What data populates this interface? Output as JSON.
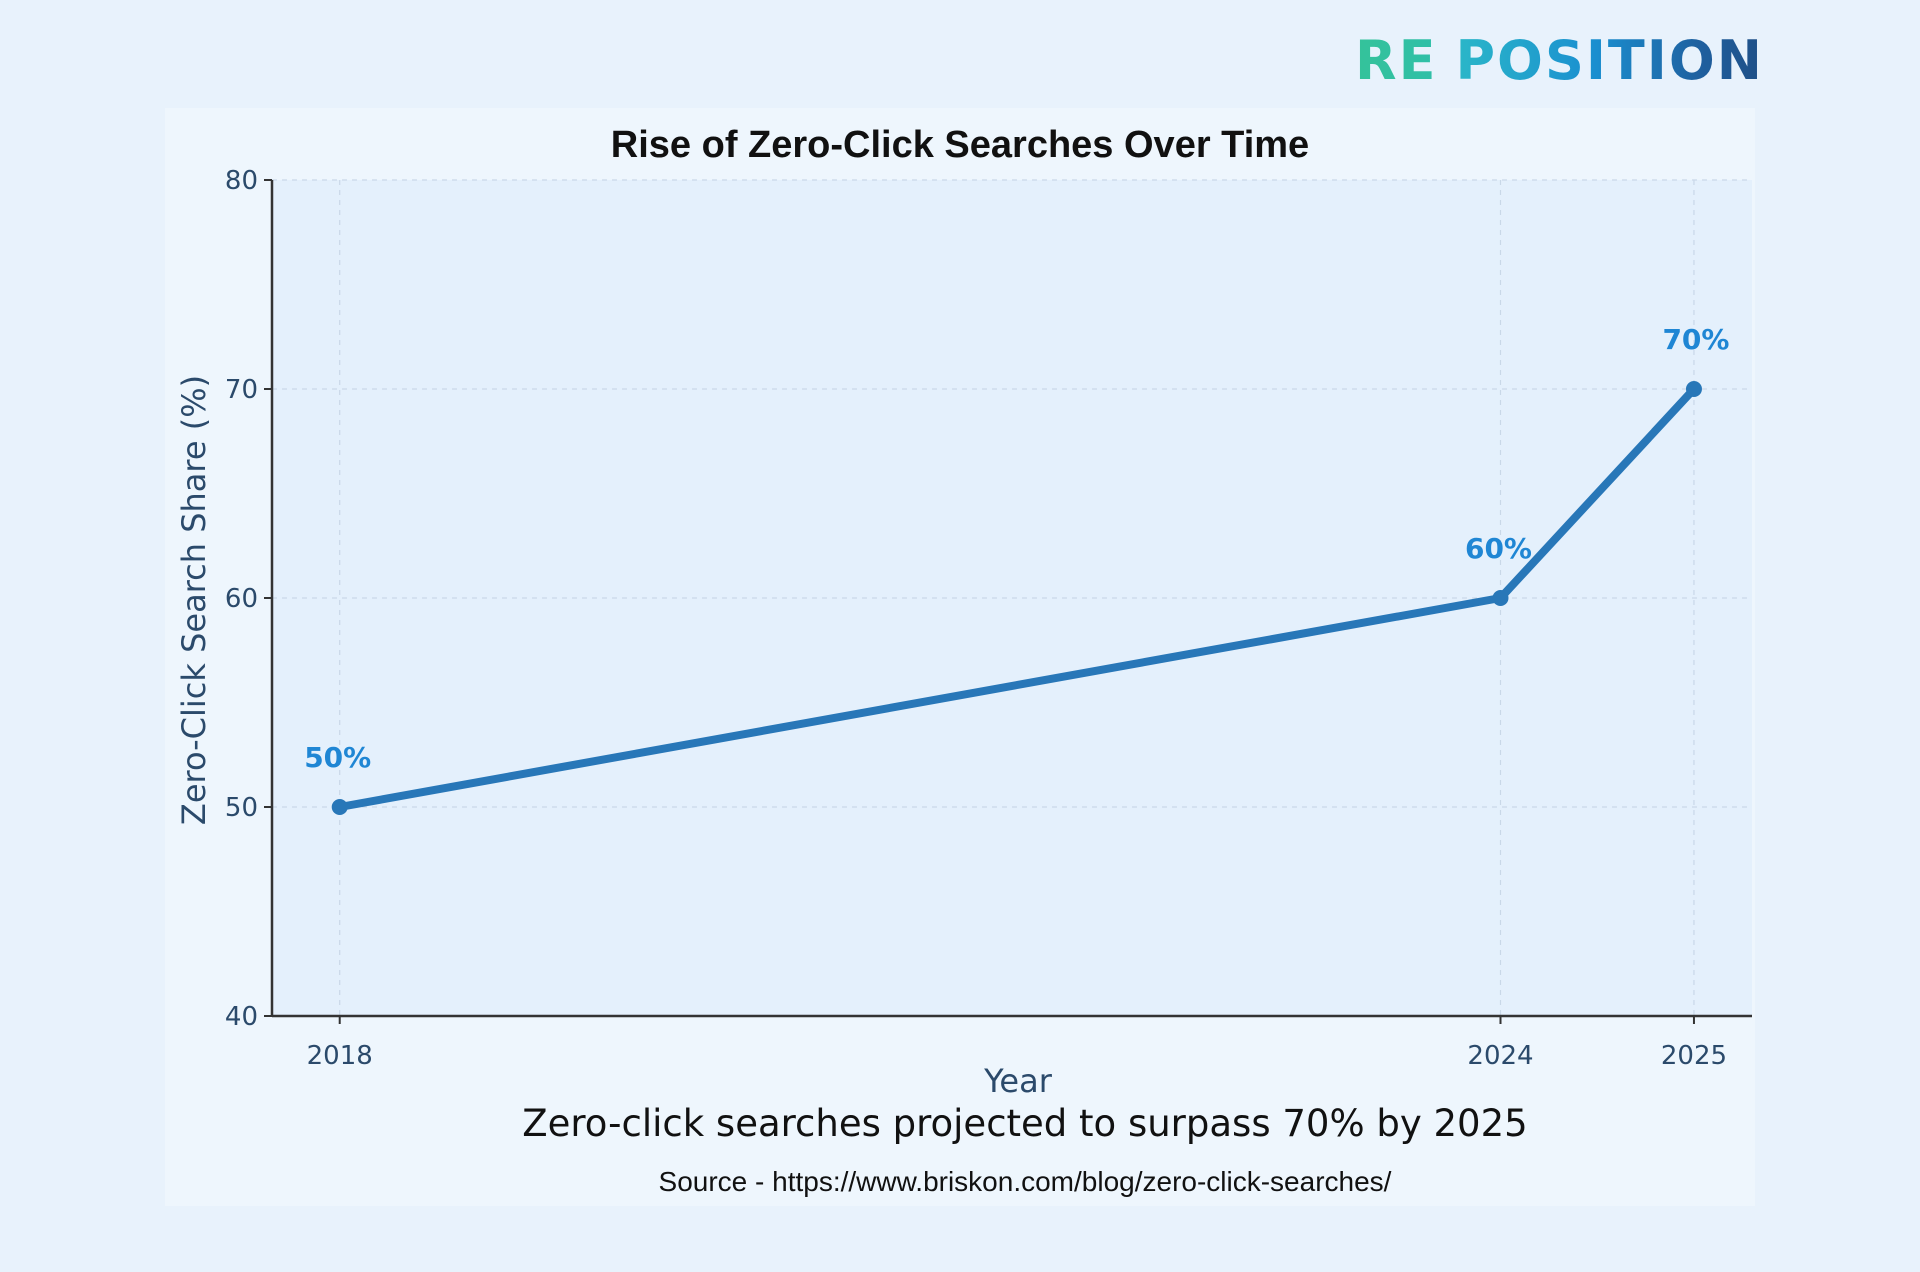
{
  "logo": {
    "part1": "RE",
    "part2": "POSITION"
  },
  "chart_data": {
    "type": "line",
    "title": "Rise of Zero-Click Searches Over Time",
    "xlabel": "Year",
    "ylabel": "Zero-Click Search Share (%)",
    "x": [
      2018,
      2024,
      2025
    ],
    "x_tick_labels": [
      "2018",
      "2024",
      "2025"
    ],
    "values": [
      50,
      60,
      70
    ],
    "data_labels": [
      "50%",
      "60%",
      "70%"
    ],
    "ylim": [
      40,
      80
    ],
    "xlim": [
      2017.65,
      2025.3
    ],
    "y_ticks": [
      40,
      50,
      60,
      70,
      80
    ],
    "y_tick_labels": [
      "40",
      "50",
      "60",
      "70",
      "80"
    ],
    "grid": true,
    "line_color": "#2877b8",
    "label_color": "#1f86d4"
  },
  "captions": {
    "main": "Zero-click searches projected to surpass 70% by 2025",
    "source": "Source - https://www.briskon.com/blog/zero-click-searches/"
  }
}
